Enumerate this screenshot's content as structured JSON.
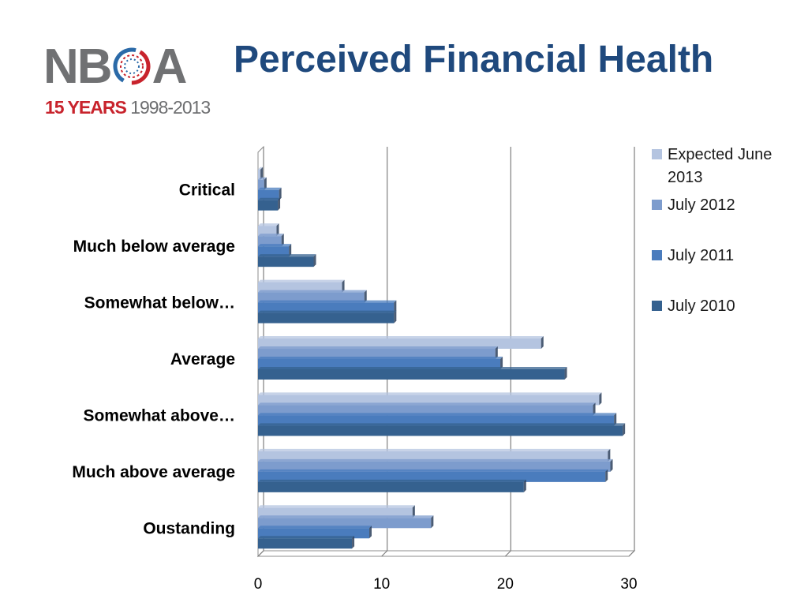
{
  "logo": {
    "wordmark_left": "NB",
    "wordmark_right": "A",
    "years_label": "15 YEARS",
    "range_label": "1998-2013",
    "colors": {
      "gray": "#707173",
      "red": "#c8232c",
      "blue": "#2b6aa8"
    }
  },
  "title": "Perceived Financial Health",
  "colors": {
    "title": "#1f497d",
    "series": [
      "#b4c4e0",
      "#7d9ccd",
      "#4a7cbd",
      "#35618f"
    ]
  },
  "chart_data": {
    "type": "bar",
    "orientation": "horizontal",
    "title": "",
    "xlabel": "",
    "ylabel": "",
    "xlim": [
      0,
      30
    ],
    "xticks": [
      0,
      10,
      20,
      30
    ],
    "grid": true,
    "legend_position": "right",
    "categories": [
      "Critical",
      "Much below average",
      "Somewhat below…",
      "Average",
      "Somewhat above…",
      "Much above average",
      "Oustanding"
    ],
    "series": [
      {
        "name": "Expected June 2013",
        "values": [
          0.2,
          1.5,
          6.8,
          22.9,
          27.6,
          28.3,
          12.5
        ]
      },
      {
        "name": "July 2012",
        "values": [
          0.5,
          1.9,
          8.6,
          19.2,
          27.1,
          28.5,
          14.0
        ]
      },
      {
        "name": "July 2011",
        "values": [
          1.7,
          2.5,
          11.0,
          19.6,
          28.8,
          28.1,
          9.0
        ]
      },
      {
        "name": "July 2010",
        "values": [
          1.6,
          4.5,
          11.0,
          24.8,
          29.5,
          21.5,
          7.6
        ]
      }
    ]
  }
}
